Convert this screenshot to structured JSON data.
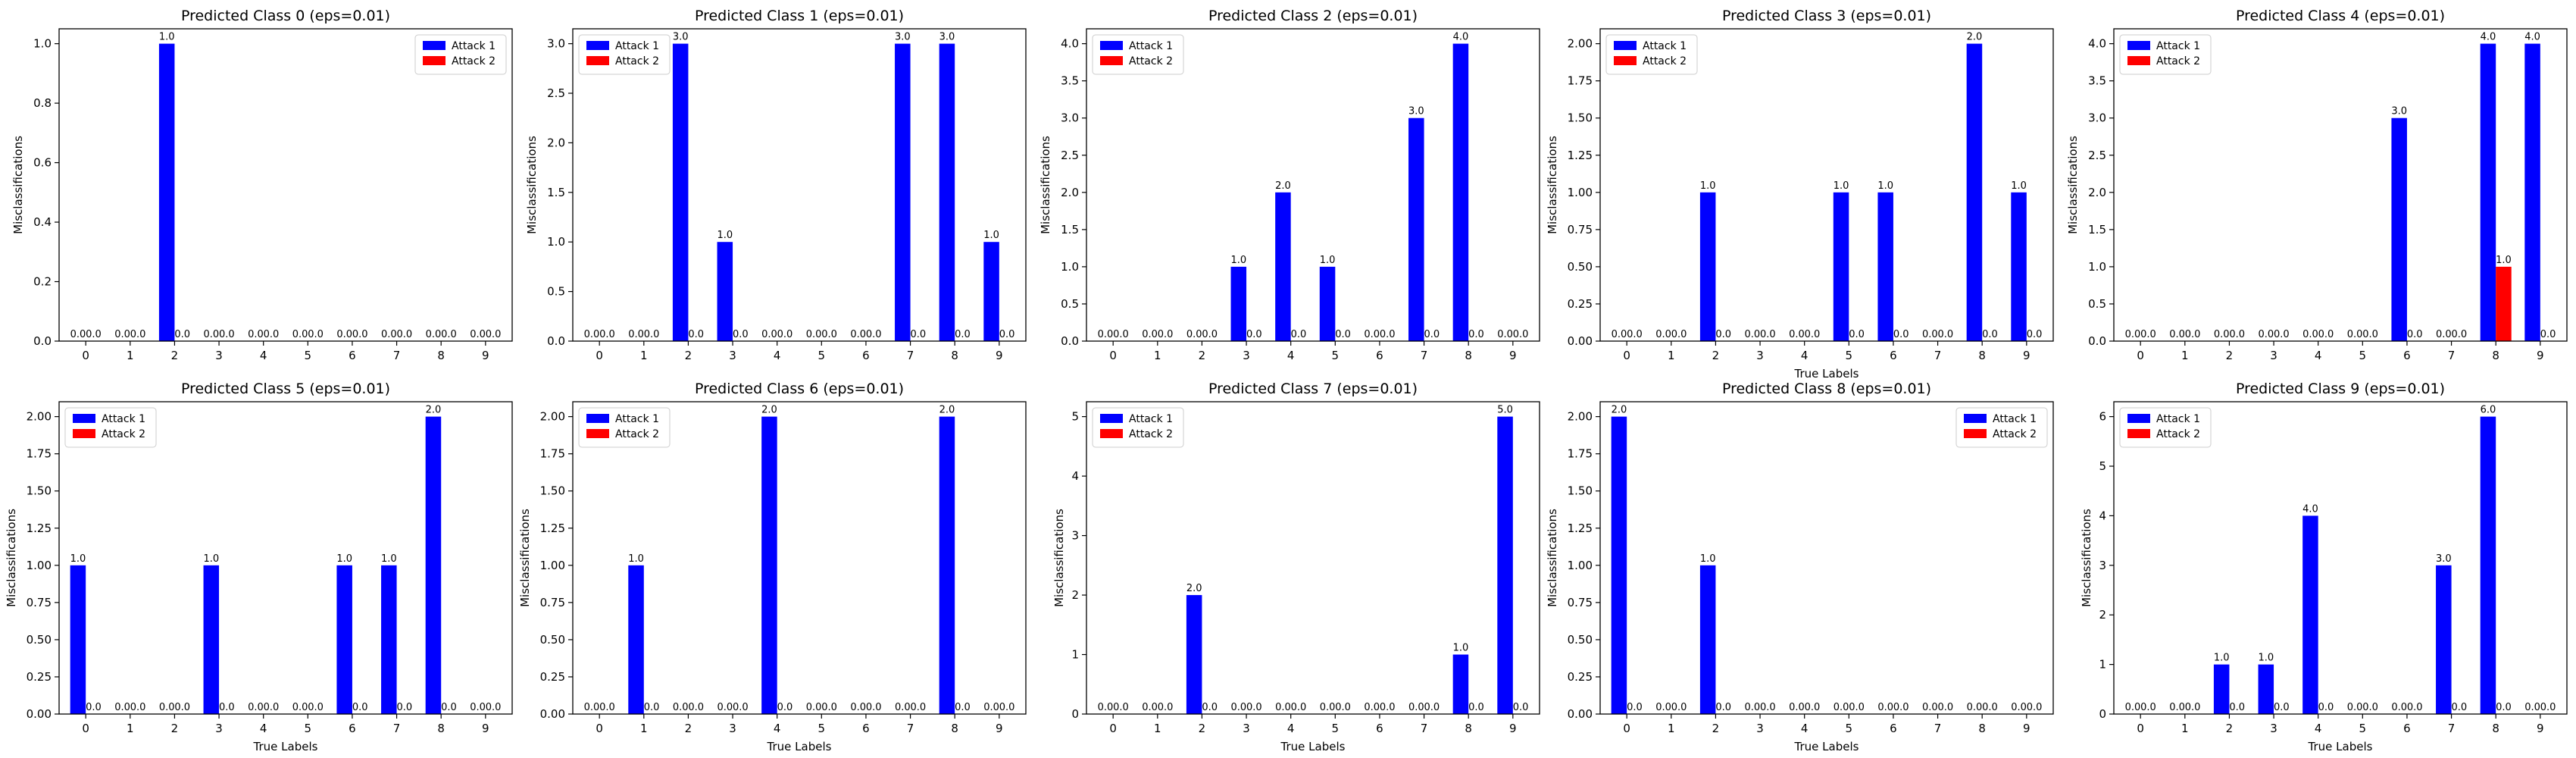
{
  "colors": {
    "series_1": "#0000ff",
    "series_2": "#ff0000",
    "axes": "#000000",
    "background": "#ffffff"
  },
  "chart_data": [
    {
      "type": "bar",
      "title": "Predicted Class 0 (eps=0.01)",
      "xlabel": "",
      "ylabel": "Misclassifications",
      "categories": [
        "0",
        "1",
        "2",
        "3",
        "4",
        "5",
        "6",
        "7",
        "8",
        "9"
      ],
      "series": [
        {
          "name": "Attack 1",
          "values": [
            0,
            0,
            1,
            0,
            0,
            0,
            0,
            0,
            0,
            0
          ]
        },
        {
          "name": "Attack 2",
          "values": [
            0,
            0,
            0,
            0,
            0,
            0,
            0,
            0,
            0,
            0
          ]
        }
      ],
      "ylim": [
        0,
        1.05
      ],
      "yticks": [
        "0.0",
        "0.2",
        "0.4",
        "0.6",
        "0.8",
        "1.0"
      ],
      "legend": "top-right",
      "grid": false
    },
    {
      "type": "bar",
      "title": "Predicted Class 1 (eps=0.01)",
      "xlabel": "",
      "ylabel": "Misclassifications",
      "categories": [
        "0",
        "1",
        "2",
        "3",
        "4",
        "5",
        "6",
        "7",
        "8",
        "9"
      ],
      "series": [
        {
          "name": "Attack 1",
          "values": [
            0,
            0,
            3,
            1,
            0,
            0,
            0,
            3,
            3,
            1
          ]
        },
        {
          "name": "Attack 2",
          "values": [
            0,
            0,
            0,
            0,
            0,
            0,
            0,
            0,
            0,
            0
          ]
        }
      ],
      "ylim": [
        0,
        3.15
      ],
      "yticks": [
        "0.0",
        "0.5",
        "1.0",
        "1.5",
        "2.0",
        "2.5",
        "3.0"
      ],
      "legend": "top-left",
      "grid": false
    },
    {
      "type": "bar",
      "title": "Predicted Class 2 (eps=0.01)",
      "xlabel": "",
      "ylabel": "Misclassifications",
      "categories": [
        "0",
        "1",
        "2",
        "3",
        "4",
        "5",
        "6",
        "7",
        "8",
        "9"
      ],
      "series": [
        {
          "name": "Attack 1",
          "values": [
            0,
            0,
            0,
            1,
            2,
            1,
            0,
            3,
            4,
            0
          ]
        },
        {
          "name": "Attack 2",
          "values": [
            0,
            0,
            0,
            0,
            0,
            0,
            0,
            0,
            0,
            0
          ]
        }
      ],
      "ylim": [
        0,
        4.2
      ],
      "yticks": [
        "0.0",
        "0.5",
        "1.0",
        "1.5",
        "2.0",
        "2.5",
        "3.0",
        "3.5",
        "4.0"
      ],
      "legend": "top-left",
      "grid": false
    },
    {
      "type": "bar",
      "title": "Predicted Class 3 (eps=0.01)",
      "xlabel": "True Labels",
      "ylabel": "Misclassifications",
      "categories": [
        "0",
        "1",
        "2",
        "3",
        "4",
        "5",
        "6",
        "7",
        "8",
        "9"
      ],
      "series": [
        {
          "name": "Attack 1",
          "values": [
            0,
            0,
            1,
            0,
            0,
            1,
            1,
            0,
            2,
            1
          ]
        },
        {
          "name": "Attack 2",
          "values": [
            0,
            0,
            0,
            0,
            0,
            0,
            0,
            0,
            0,
            0
          ]
        }
      ],
      "ylim": [
        0,
        2.1
      ],
      "yticks": [
        "0.00",
        "0.25",
        "0.50",
        "0.75",
        "1.00",
        "1.25",
        "1.50",
        "1.75",
        "2.00"
      ],
      "legend": "top-left",
      "grid": false
    },
    {
      "type": "bar",
      "title": "Predicted Class 4 (eps=0.01)",
      "xlabel": "",
      "ylabel": "Misclassifications",
      "categories": [
        "0",
        "1",
        "2",
        "3",
        "4",
        "5",
        "6",
        "7",
        "8",
        "9"
      ],
      "series": [
        {
          "name": "Attack 1",
          "values": [
            0,
            0,
            0,
            0,
            0,
            0,
            3,
            0,
            4,
            4
          ]
        },
        {
          "name": "Attack 2",
          "values": [
            0,
            0,
            0,
            0,
            0,
            0,
            0,
            0,
            1,
            0
          ]
        }
      ],
      "ylim": [
        0,
        4.2
      ],
      "yticks": [
        "0.0",
        "0.5",
        "1.0",
        "1.5",
        "2.0",
        "2.5",
        "3.0",
        "3.5",
        "4.0"
      ],
      "legend": "top-left",
      "grid": false
    },
    {
      "type": "bar",
      "title": "Predicted Class 5 (eps=0.01)",
      "xlabel": "True Labels",
      "ylabel": "Misclassifications",
      "categories": [
        "0",
        "1",
        "2",
        "3",
        "4",
        "5",
        "6",
        "7",
        "8",
        "9"
      ],
      "series": [
        {
          "name": "Attack 1",
          "values": [
            1,
            0,
            0,
            1,
            0,
            0,
            1,
            1,
            2,
            0
          ]
        },
        {
          "name": "Attack 2",
          "values": [
            0,
            0,
            0,
            0,
            0,
            0,
            0,
            0,
            0,
            0
          ]
        }
      ],
      "ylim": [
        0,
        2.1
      ],
      "yticks": [
        "0.00",
        "0.25",
        "0.50",
        "0.75",
        "1.00",
        "1.25",
        "1.50",
        "1.75",
        "2.00"
      ],
      "legend": "top-left",
      "grid": false
    },
    {
      "type": "bar",
      "title": "Predicted Class 6 (eps=0.01)",
      "xlabel": "True Labels",
      "ylabel": "Misclassifications",
      "categories": [
        "0",
        "1",
        "2",
        "3",
        "4",
        "5",
        "6",
        "7",
        "8",
        "9"
      ],
      "series": [
        {
          "name": "Attack 1",
          "values": [
            0,
            1,
            0,
            0,
            2,
            0,
            0,
            0,
            2,
            0
          ]
        },
        {
          "name": "Attack 2",
          "values": [
            0,
            0,
            0,
            0,
            0,
            0,
            0,
            0,
            0,
            0
          ]
        }
      ],
      "ylim": [
        0,
        2.1
      ],
      "yticks": [
        "0.00",
        "0.25",
        "0.50",
        "0.75",
        "1.00",
        "1.25",
        "1.50",
        "1.75",
        "2.00"
      ],
      "legend": "top-left",
      "grid": false
    },
    {
      "type": "bar",
      "title": "Predicted Class 7 (eps=0.01)",
      "xlabel": "True Labels",
      "ylabel": "Misclassifications",
      "categories": [
        "0",
        "1",
        "2",
        "3",
        "4",
        "5",
        "6",
        "7",
        "8",
        "9"
      ],
      "series": [
        {
          "name": "Attack 1",
          "values": [
            0,
            0,
            2,
            0,
            0,
            0,
            0,
            0,
            1,
            5
          ]
        },
        {
          "name": "Attack 2",
          "values": [
            0,
            0,
            0,
            0,
            0,
            0,
            0,
            0,
            0,
            0
          ]
        }
      ],
      "ylim": [
        0,
        5.25
      ],
      "yticks": [
        "0",
        "1",
        "2",
        "3",
        "4",
        "5"
      ],
      "legend": "top-left",
      "grid": false
    },
    {
      "type": "bar",
      "title": "Predicted Class 8 (eps=0.01)",
      "xlabel": "True Labels",
      "ylabel": "Misclassifications",
      "categories": [
        "0",
        "1",
        "2",
        "3",
        "4",
        "5",
        "6",
        "7",
        "8",
        "9"
      ],
      "series": [
        {
          "name": "Attack 1",
          "values": [
            2,
            0,
            1,
            0,
            0,
            0,
            0,
            0,
            0,
            0
          ]
        },
        {
          "name": "Attack 2",
          "values": [
            0,
            0,
            0,
            0,
            0,
            0,
            0,
            0,
            0,
            0
          ]
        }
      ],
      "ylim": [
        0,
        2.1
      ],
      "yticks": [
        "0.00",
        "0.25",
        "0.50",
        "0.75",
        "1.00",
        "1.25",
        "1.50",
        "1.75",
        "2.00"
      ],
      "legend": "top-right",
      "grid": false
    },
    {
      "type": "bar",
      "title": "Predicted Class 9 (eps=0.01)",
      "xlabel": "True Labels",
      "ylabel": "Misclassifications",
      "categories": [
        "0",
        "1",
        "2",
        "3",
        "4",
        "5",
        "6",
        "7",
        "8",
        "9"
      ],
      "series": [
        {
          "name": "Attack 1",
          "values": [
            0,
            0,
            1,
            1,
            4,
            0,
            0,
            3,
            6,
            0
          ]
        },
        {
          "name": "Attack 2",
          "values": [
            0,
            0,
            0,
            0,
            0,
            0,
            0,
            0,
            0,
            0
          ]
        }
      ],
      "ylim": [
        0,
        6.3
      ],
      "yticks": [
        "0",
        "1",
        "2",
        "3",
        "4",
        "5",
        "6"
      ],
      "legend": "top-left",
      "grid": false
    }
  ]
}
